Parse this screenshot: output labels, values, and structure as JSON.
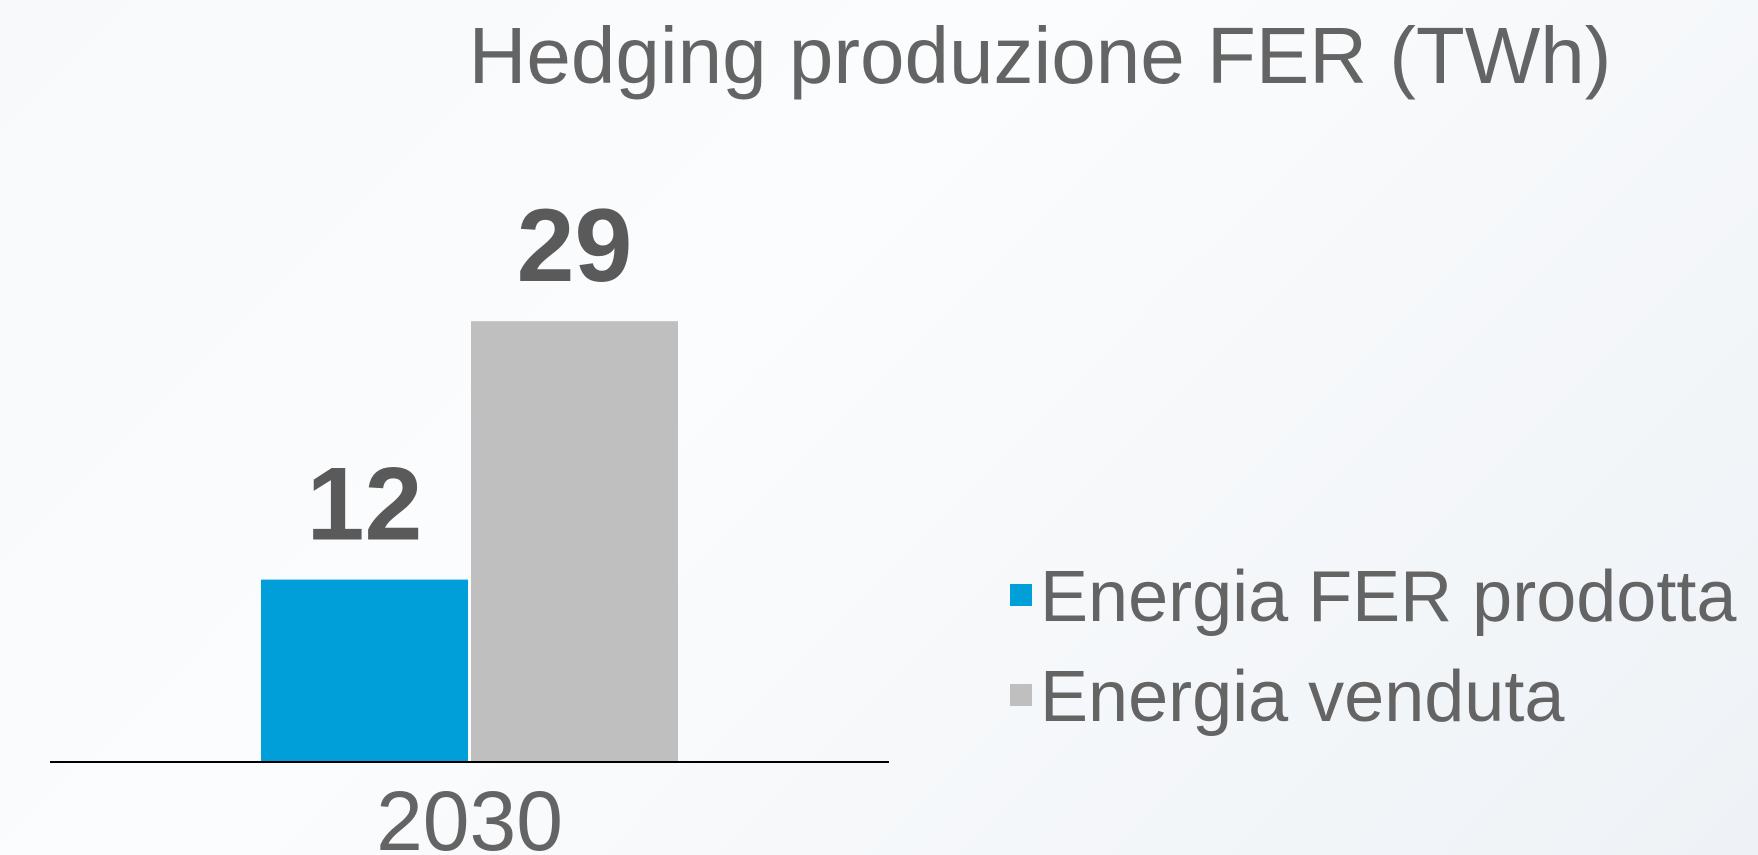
{
  "chart_data": {
    "type": "bar",
    "title": "Hedging produzione FER (TWh)",
    "categories": [
      "2030"
    ],
    "series": [
      {
        "name": "Energia FER prodotta",
        "color": "#009fda",
        "values": [
          12
        ]
      },
      {
        "name": "Energia venduta",
        "color": "#bfbfbf",
        "values": [
          29
        ]
      }
    ],
    "ylim": [
      0,
      35
    ],
    "legend": "right"
  }
}
